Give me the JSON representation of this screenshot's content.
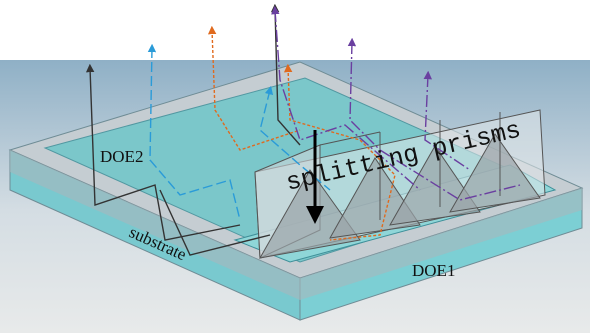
{
  "labels": {
    "doe2": "DOE2",
    "substrate": "substrate",
    "doe1": "DOE1",
    "prisms": "splitting prisms"
  }
}
